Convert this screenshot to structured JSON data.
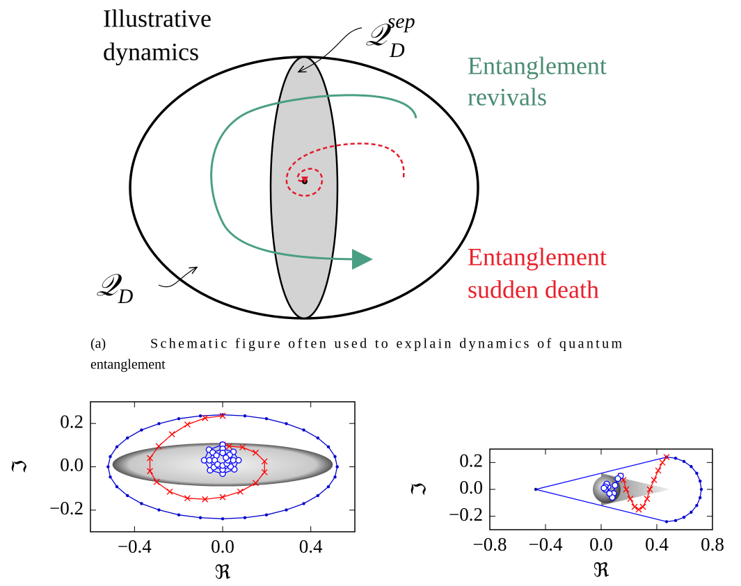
{
  "diagram": {
    "title_lines": [
      "Illustrative",
      "dynamics"
    ],
    "sep_label": {
      "symbol": "𝒬",
      "sub": "D",
      "sup": "sep"
    },
    "set_label": {
      "symbol": "𝒬",
      "sub": "D"
    },
    "revivals_lines": [
      "Entanglement",
      "revivals"
    ],
    "death_lines": [
      "Entanglement",
      "sudden death"
    ]
  },
  "caption": {
    "tag": "(a)",
    "text_lines": [
      "Schematic figure often used to explain dynamics of quantum",
      "entanglement"
    ]
  },
  "chart_data": [
    {
      "type": "line",
      "xlabel": "ℜ",
      "ylabel": "ℑ",
      "xlim": [
        -0.6,
        0.6
      ],
      "ylim": [
        -0.3,
        0.3
      ],
      "xticks": [
        {
          "value": -0.4,
          "label": "−0.4"
        },
        {
          "value": 0,
          "label": "0.0"
        },
        0.4
      ],
      "yticks": [
        {
          "value": -0.2,
          "label": "−0.2"
        },
        {
          "value": 0,
          "label": "0.0"
        },
        0.2
      ],
      "regions": [
        {
          "shape": "ellipse",
          "cx": 0,
          "cy": 0.01,
          "rx": 0.5,
          "ry": 0.1
        }
      ],
      "series": [
        {
          "color": "#0000cc",
          "marker": "dot",
          "x": [
            0.52,
            0.51,
            0.48,
            0.432,
            0.368,
            0.289,
            0.199,
            0.101,
            0,
            -0.101,
            -0.199,
            -0.289,
            -0.368,
            -0.432,
            -0.48,
            -0.51,
            -0.52,
            -0.51,
            -0.48,
            -0.432,
            -0.368,
            -0.289,
            -0.199,
            -0.101,
            0,
            0.101,
            0.199,
            0.289,
            0.368,
            0.432,
            0.48,
            0.51,
            0.52
          ],
          "values": [
            0,
            0.047,
            0.092,
            0.133,
            0.17,
            0.199,
            0.222,
            0.235,
            0.24,
            0.235,
            0.222,
            0.199,
            0.17,
            0.133,
            0.092,
            0.047,
            0,
            -0.047,
            -0.092,
            -0.133,
            -0.17,
            -0.199,
            -0.222,
            -0.235,
            -0.24,
            -0.235,
            -0.222,
            -0.199,
            -0.17,
            -0.133,
            -0.092,
            -0.047,
            0
          ]
        },
        {
          "color": "#ff0000",
          "marker": "x",
          "x": [
            0,
            -0.08,
            -0.16,
            -0.23,
            -0.29,
            -0.33,
            -0.33,
            -0.3,
            -0.24,
            -0.16,
            -0.08,
            0,
            0.08,
            0.15,
            0.19,
            0.19,
            0.15,
            0.09,
            0.03,
            0
          ],
          "values": [
            0.235,
            0.225,
            0.195,
            0.15,
            0.095,
            0.04,
            -0.02,
            -0.07,
            -0.115,
            -0.145,
            -0.15,
            -0.14,
            -0.115,
            -0.075,
            -0.025,
            0.025,
            0.065,
            0.09,
            0.095,
            0.102
          ]
        },
        {
          "color": "#0000ff",
          "marker": "circle",
          "x": [
            0,
            -0.062,
            -0.084,
            -0.057,
            0,
            0.053,
            0.072,
            0.049,
            0,
            -0.045,
            -0.06,
            -0.04,
            0,
            0.036,
            0.048,
            0.032,
            0,
            -0.028,
            -0.036,
            -0.023,
            0,
            0.019,
            0.024,
            0.015
          ],
          "values": [
            0.102,
            0.079,
            0.03,
            -0.016,
            -0.032,
            -0.012,
            0.03,
            0.069,
            0.083,
            0.066,
            0.03,
            -0.002,
            -0.013,
            0.001,
            0.03,
            0.055,
            0.064,
            0.052,
            0.03,
            0.011,
            0.006,
            0.015,
            0.03,
            0.042
          ]
        }
      ]
    },
    {
      "type": "line",
      "xlabel": "ℜ",
      "ylabel": "ℑ",
      "xlim": [
        -0.8,
        0.8
      ],
      "ylim": [
        -0.3,
        0.3
      ],
      "xticks": [
        {
          "value": -0.8,
          "label": "−0.8"
        },
        {
          "value": -0.4,
          "label": "−0.4"
        },
        {
          "value": 0,
          "label": "0.0"
        },
        0.4,
        0.8
      ],
      "yticks": [
        {
          "value": -0.2,
          "label": "−0.2"
        },
        {
          "value": 0,
          "label": "0.0"
        },
        0.2
      ],
      "regions": [
        {
          "shape": "polygon",
          "x": [
            0,
            0.5,
            0
          ],
          "y": [
            0.12,
            0,
            -0.12
          ]
        },
        {
          "shape": "circle",
          "cx": 0.04,
          "cy": 0,
          "r": 0.1
        }
      ],
      "series": [
        {
          "color": "#0000ff",
          "marker": "none",
          "x": [
            0.47,
            -0.47,
            0.47
          ],
          "values": [
            0.24,
            0,
            -0.24
          ]
        },
        {
          "color": "#00008b",
          "marker": "dot",
          "x": [
            -0.47
          ],
          "values": [
            0
          ]
        },
        {
          "color": "#0000cc",
          "marker": "dot",
          "x": [
            0.47,
            0.535,
            0.595,
            0.647,
            0.687,
            0.711,
            0.72,
            0.711,
            0.687,
            0.647,
            0.595,
            0.535,
            0.47
          ],
          "values": [
            0.24,
            0.232,
            0.208,
            0.17,
            0.12,
            0.062,
            0,
            -0.062,
            -0.12,
            -0.17,
            -0.208,
            -0.232,
            -0.24
          ]
        },
        {
          "color": "#ff0000",
          "marker": "x",
          "x": [
            0.47,
            0.44,
            0.41,
            0.38,
            0.35,
            0.33,
            0.3,
            0.27,
            0.24,
            0.21,
            0.18,
            0.16,
            0.14
          ],
          "values": [
            0.24,
            0.2,
            0.14,
            0.07,
            0,
            -0.07,
            -0.13,
            -0.15,
            -0.13,
            -0.07,
            0,
            0.07,
            0.1
          ]
        },
        {
          "color": "#0000ff",
          "marker": "circle",
          "x": [
            0.14,
            0.12,
            0.1,
            0.09,
            0.08,
            0.06,
            0.05,
            0.04,
            0.03,
            0.03,
            0.02
          ],
          "values": [
            0.1,
            0.08,
            0.03,
            -0.03,
            -0.06,
            -0.03,
            0.02,
            0.04,
            0.02,
            0,
            0.01
          ]
        }
      ]
    }
  ]
}
